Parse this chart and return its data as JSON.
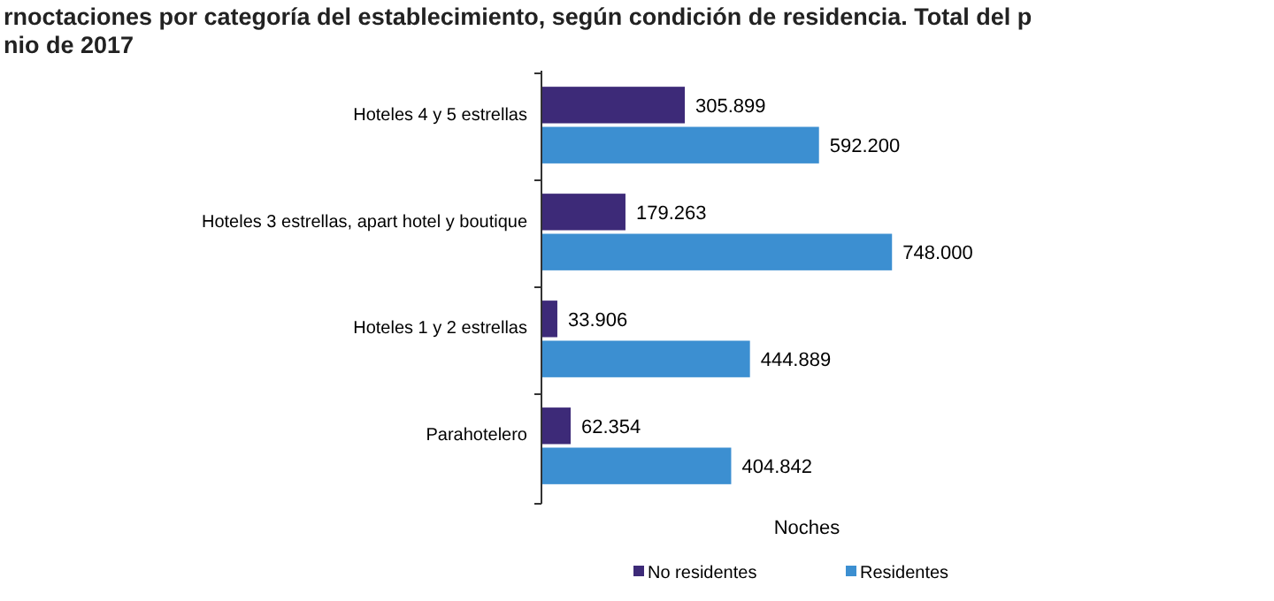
{
  "chart_data": {
    "type": "bar",
    "orientation": "horizontal",
    "title": "rnoctaciones por categoría del establecimiento, según condición de residencia. Total del p\nnio de 2017",
    "xlabel": "Noches",
    "categories": [
      "Hoteles 4 y 5 estrellas",
      "Hoteles 3 estrellas, apart hotel y boutique",
      "Hoteles 1 y 2 estrellas",
      "Parahotelero"
    ],
    "series": [
      {
        "name": "No residentes",
        "color": "#3d2a78",
        "values": [
          305899,
          179263,
          33906,
          62354
        ],
        "value_labels": [
          "305.899",
          "179.263",
          "33.906",
          "62.354"
        ]
      },
      {
        "name": "Residentes",
        "color": "#3c8fd1",
        "values": [
          592200,
          748000,
          444889,
          404842
        ],
        "value_labels": [
          "592.200",
          "748.000",
          "444.889",
          "404.842"
        ]
      }
    ],
    "legend": "bottom"
  }
}
